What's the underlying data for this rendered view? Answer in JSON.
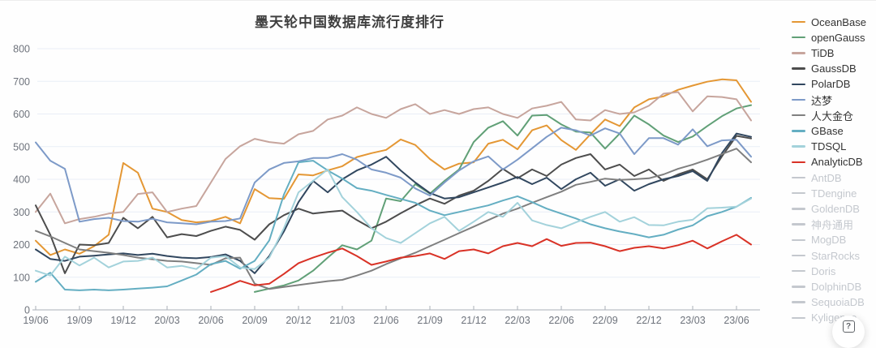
{
  "help_button": {
    "label": "?"
  },
  "chart_data": {
    "type": "line",
    "title": "墨天轮中国数据库流行度排行",
    "xlabel": "",
    "ylabel": "",
    "ylim": [
      0,
      800
    ],
    "y_ticks": [
      0,
      100,
      200,
      300,
      400,
      500,
      600,
      700,
      800
    ],
    "grid": true,
    "legend_position": "right",
    "x_tick_labels": [
      "19/06",
      "19/09",
      "19/12",
      "20/03",
      "20/06",
      "20/09",
      "20/12",
      "21/03",
      "21/06",
      "21/09",
      "21/12",
      "22/03",
      "22/06",
      "22/09",
      "22/12",
      "23/03",
      "23/06"
    ],
    "x_tick_interval_months": 3,
    "n_points": 50,
    "x_start": "19/06",
    "x_end": "23/07",
    "series": [
      {
        "name": "OceanBase",
        "color": "#E49734",
        "enabled": true,
        "values": [
          212,
          168,
          185,
          172,
          195,
          230,
          450,
          420,
          310,
          300,
          275,
          268,
          272,
          285,
          265,
          370,
          342,
          340,
          415,
          412,
          427,
          440,
          468,
          480,
          490,
          522,
          505,
          462,
          430,
          448,
          452,
          509,
          521,
          492,
          550,
          565,
          520,
          490,
          538,
          583,
          563,
          620,
          645,
          654,
          674,
          687,
          699,
          706,
          703,
          637
        ]
      },
      {
        "name": "openGauss",
        "color": "#61A077",
        "enabled": true,
        "values": [
          null,
          null,
          null,
          null,
          null,
          null,
          null,
          null,
          null,
          null,
          null,
          null,
          null,
          null,
          null,
          55,
          65,
          75,
          90,
          120,
          160,
          198,
          185,
          212,
          341,
          333,
          385,
          356,
          395,
          430,
          514,
          558,
          578,
          534,
          595,
          597,
          568,
          546,
          543,
          494,
          540,
          595,
          568,
          534,
          514,
          531,
          563,
          593,
          617,
          627
        ]
      },
      {
        "name": "TiDB",
        "color": "#C7A59D",
        "enabled": true,
        "values": [
          300,
          356,
          265,
          278,
          285,
          295,
          300,
          355,
          360,
          300,
          310,
          318,
          390,
          462,
          501,
          524,
          514,
          509,
          538,
          548,
          583,
          595,
          620,
          600,
          588,
          615,
          630,
          600,
          612,
          600,
          615,
          620,
          600,
          588,
          617,
          625,
          637,
          583,
          580,
          612,
          600,
          605,
          625,
          662,
          667,
          608,
          654,
          652,
          645,
          580
        ]
      },
      {
        "name": "GaussDB",
        "color": "#4D4D4D",
        "enabled": true,
        "values": [
          320,
          230,
          112,
          200,
          198,
          205,
          282,
          250,
          285,
          222,
          232,
          226,
          242,
          255,
          245,
          215,
          262,
          290,
          310,
          295,
          300,
          304,
          275,
          250,
          270,
          296,
          320,
          341,
          325,
          350,
          365,
          395,
          432,
          403,
          430,
          410,
          445,
          465,
          477,
          430,
          445,
          410,
          430,
          395,
          415,
          430,
          400,
          470,
          533,
          525
        ]
      },
      {
        "name": "PolarDB",
        "color": "#31475F",
        "enabled": true,
        "values": [
          185,
          156,
          150,
          163,
          166,
          170,
          173,
          168,
          172,
          165,
          160,
          158,
          162,
          170,
          150,
          112,
          165,
          240,
          330,
          395,
          360,
          400,
          427,
          445,
          469,
          427,
          390,
          358,
          341,
          345,
          360,
          375,
          390,
          407,
          385,
          405,
          370,
          400,
          420,
          380,
          400,
          365,
          385,
          400,
          410,
          425,
          395,
          480,
          540,
          530
        ]
      },
      {
        "name": "达梦",
        "color": "#7D9AC8",
        "enabled": true,
        "values": [
          513,
          457,
          432,
          270,
          278,
          282,
          272,
          270,
          279,
          268,
          265,
          262,
          270,
          272,
          280,
          390,
          430,
          450,
          455,
          465,
          465,
          477,
          460,
          430,
          420,
          405,
          372,
          350,
          390,
          427,
          455,
          470,
          430,
          460,
          495,
          530,
          558,
          550,
          534,
          556,
          540,
          477,
          526,
          526,
          506,
          553,
          501,
          519,
          521,
          469
        ]
      },
      {
        "name": "人大金仓",
        "color": "#7F7F7F",
        "enabled": true,
        "values": [
          242,
          225,
          205,
          185,
          180,
          175,
          168,
          160,
          155,
          150,
          148,
          143,
          138,
          158,
          160,
          80,
          64,
          70,
          76,
          82,
          88,
          92,
          105,
          120,
          140,
          158,
          175,
          195,
          215,
          235,
          255,
          275,
          295,
          310,
          328,
          345,
          362,
          383,
          392,
          402,
          398,
          400,
          403,
          415,
          432,
          445,
          460,
          477,
          494,
          452
        ]
      },
      {
        "name": "GBase",
        "color": "#64AEC2",
        "enabled": true,
        "values": [
          86,
          114,
          62,
          60,
          62,
          60,
          62,
          65,
          68,
          72,
          90,
          108,
          140,
          150,
          126,
          150,
          213,
          353,
          452,
          457,
          427,
          402,
          373,
          365,
          352,
          340,
          328,
          304,
          290,
          300,
          310,
          320,
          335,
          348,
          330,
          310,
          295,
          280,
          262,
          250,
          240,
          232,
          222,
          230,
          246,
          259,
          287,
          300,
          316,
          343
        ]
      },
      {
        "name": "TDSQL",
        "color": "#A3D2DB",
        "enabled": true,
        "values": [
          120,
          105,
          163,
          136,
          160,
          130,
          148,
          150,
          160,
          130,
          135,
          125,
          160,
          165,
          130,
          125,
          160,
          250,
          360,
          395,
          430,
          345,
          300,
          250,
          220,
          205,
          235,
          265,
          285,
          242,
          270,
          300,
          285,
          328,
          274,
          260,
          250,
          268,
          285,
          300,
          270,
          284,
          260,
          259,
          270,
          276,
          311,
          313,
          316,
          341
        ]
      },
      {
        "name": "AnalyticDB",
        "color": "#D93226",
        "enabled": true,
        "values": [
          null,
          null,
          null,
          null,
          null,
          null,
          null,
          null,
          null,
          null,
          null,
          null,
          55,
          70,
          89,
          75,
          80,
          110,
          143,
          160,
          175,
          188,
          165,
          138,
          148,
          160,
          165,
          173,
          156,
          180,
          185,
          173,
          195,
          205,
          195,
          217,
          196,
          205,
          206,
          195,
          180,
          190,
          195,
          188,
          198,
          212,
          188,
          210,
          230,
          200
        ]
      },
      {
        "name": "AntDB",
        "color": "#C4C8CE",
        "enabled": false,
        "values": null
      },
      {
        "name": "TDengine",
        "color": "#C4C8CE",
        "enabled": false,
        "values": null
      },
      {
        "name": "GoldenDB",
        "color": "#C4C8CE",
        "enabled": false,
        "values": null
      },
      {
        "name": "神舟通用",
        "color": "#C4C8CE",
        "enabled": false,
        "values": null
      },
      {
        "name": "MogDB",
        "color": "#C4C8CE",
        "enabled": false,
        "values": null
      },
      {
        "name": "StarRocks",
        "color": "#C4C8CE",
        "enabled": false,
        "values": null
      },
      {
        "name": "Doris",
        "color": "#C4C8CE",
        "enabled": false,
        "values": null
      },
      {
        "name": "DolphinDB",
        "color": "#C4C8CE",
        "enabled": false,
        "values": null
      },
      {
        "name": "SequoiaDB",
        "color": "#C4C8CE",
        "enabled": false,
        "values": null
      },
      {
        "name": "Kyligence",
        "color": "#C4C8CE",
        "enabled": false,
        "values": null
      }
    ],
    "style": {
      "grid_color": "#E9EEF6",
      "axis_line_color": "#ABB0B8",
      "axis_text_color": "#6E737C",
      "background": "#FEFEFE"
    }
  }
}
